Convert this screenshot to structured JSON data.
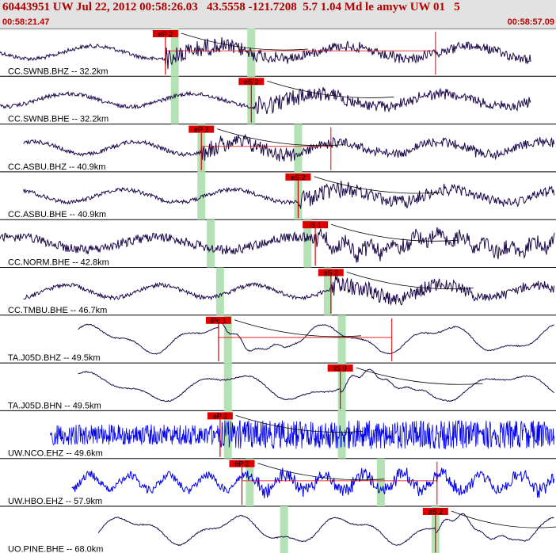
{
  "header": {
    "title": "60443951 UW Jul 22, 2012 00:58:26.03   43.5558 -121.7208  5.7 1.04 Md le amyw UW 01   5",
    "start_time": "00:58:21.47",
    "end_time": "00:58:57.09"
  },
  "colors": {
    "header_bg": "#e2e2e2",
    "header_text": "#b00000",
    "trace_dark": "#1e0a4a",
    "trace_blue": "#0000ee",
    "pick_red": "#dd0000",
    "window_green": "#b4e2b4",
    "curve": "#000000"
  },
  "chart_data": {
    "type": "line",
    "title": "60443951 UW Jul 22, 2012 00:58:26.03   43.5558 -121.7208  5.7 1.04 Md le amyw UW 01   5",
    "x_range": [
      "00:58:21.47",
      "00:58:57.09"
    ],
    "grid": false,
    "legend": "none",
    "series": [
      {
        "name": "CC.SWNB.BHZ -- 32.2km",
        "color": "#1e0a4a",
        "pick": {
          "label": "eP 2",
          "time": 10.6
        },
        "green_windows": [
          11.2,
          16.1
        ],
        "tail_mark": 27.9,
        "trace_start": 0.0,
        "trace_end": 34.0,
        "period": 8.0,
        "style": "mixed"
      },
      {
        "name": "CC.SWNB.BHE -- 32.2km",
        "color": "#1e0a4a",
        "pick": {
          "label": "eS 2",
          "time": 16.1
        },
        "green_windows": [
          11.2,
          16.1
        ],
        "tail_mark": null,
        "trace_start": 0.0,
        "trace_end": 34.0,
        "period": 8.0,
        "style": "mixed"
      },
      {
        "name": "CC.ASBU.BHZ -- 40.9km",
        "color": "#1e0a4a",
        "pick": {
          "label": "eP 2",
          "time": 12.9
        },
        "green_windows": [
          12.9,
          19.1
        ],
        "tail_mark": 21.2,
        "trace_start": 1.5,
        "trace_end": 35.5,
        "period": 6.5,
        "style": "mixed"
      },
      {
        "name": "CC.ASBU.BHE -- 40.9km",
        "color": "#1e0a4a",
        "pick": {
          "label": "eS 2",
          "time": 19.1
        },
        "green_windows": [
          12.9,
          19.1
        ],
        "tail_mark": null,
        "trace_start": 1.5,
        "trace_end": 35.5,
        "period": 7.0,
        "style": "mixed"
      },
      {
        "name": "CC.NORM.BHE -- 42.8km",
        "color": "#1e0a4a",
        "pick": {
          "label": "iS 1",
          "time": 20.2
        },
        "green_windows": [
          13.5,
          19.7
        ],
        "tail_mark": null,
        "trace_start": 0.0,
        "trace_end": 36.0,
        "period": 9.0,
        "style": "noisy"
      },
      {
        "name": "CC.TMBU.BHE -- 46.7km",
        "color": "#1e0a4a",
        "pick": {
          "label": "eS 2",
          "time": 21.2
        },
        "green_windows": [
          14.1,
          21.0
        ],
        "tail_mark": null,
        "trace_start": 1.5,
        "trace_end": 36.5,
        "period": 6.0,
        "style": "mixed"
      },
      {
        "name": "TA.J05D.BHZ -- 49.5km",
        "color": "#1e0a4a",
        "pick": {
          "label": "iPc 1",
          "time": 14.0
        },
        "green_windows": [
          14.6,
          21.9
        ],
        "tail_mark": 25.1,
        "trace_start": 5.0,
        "trace_end": 37.0,
        "period": 7.5,
        "style": "smooth"
      },
      {
        "name": "TA.J05D.BHN -- 49.5km",
        "color": "#1e0a4a",
        "pick": {
          "label": "iS 0",
          "time": 21.8
        },
        "green_windows": [
          14.6,
          21.9
        ],
        "tail_mark": null,
        "trace_start": 5.0,
        "trace_end": 37.0,
        "period": 9.0,
        "style": "smooth"
      },
      {
        "name": "UW.NCO.EHZ -- 49.6km",
        "color": "#0000ee",
        "pick": {
          "label": "eP 2",
          "time": 14.1
        },
        "green_windows": [
          14.6,
          21.9
        ],
        "tail_mark": null,
        "trace_start": 3.2,
        "trace_end": 37.0,
        "period": 1.0,
        "style": "burst"
      },
      {
        "name": "UW.HBO.EHZ -- 57.9km",
        "color": "#0000ee",
        "pick": {
          "label": "eP 2",
          "time": 15.5
        },
        "green_windows": [
          16.0,
          24.4
        ],
        "tail_mark": 28.0,
        "trace_start": 4.6,
        "trace_end": 39.0,
        "period": 2.5,
        "style": "blueNoisy"
      },
      {
        "name": "UO.PINE.BHE -- 68.0km",
        "color": "#1e0a4a",
        "pick": {
          "label": "eS 2",
          "time": 27.9
        },
        "green_windows": [
          18.2,
          27.9
        ],
        "tail_mark": null,
        "trace_start": 6.3,
        "trace_end": 40.5,
        "period": 7.0,
        "style": "smooth"
      }
    ]
  }
}
